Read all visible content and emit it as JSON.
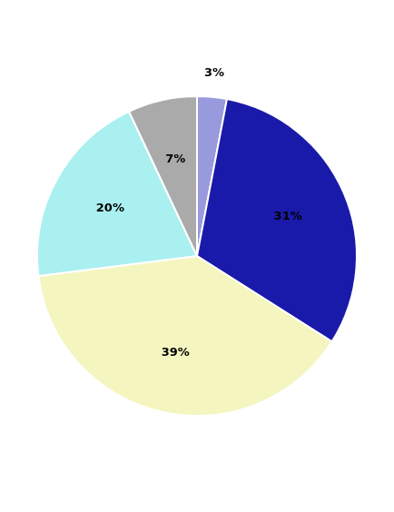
{
  "chart_data": {
    "type": "pie",
    "values": [
      3,
      31,
      39,
      20,
      7
    ],
    "value_labels": [
      "3%",
      "31%",
      "39%",
      "20%",
      "7%"
    ],
    "colors": [
      "#9999dd",
      "#1a1aaa",
      "#f5f5c0",
      "#aaf0f0",
      "#aaaaaa"
    ],
    "data_labels": true
  }
}
